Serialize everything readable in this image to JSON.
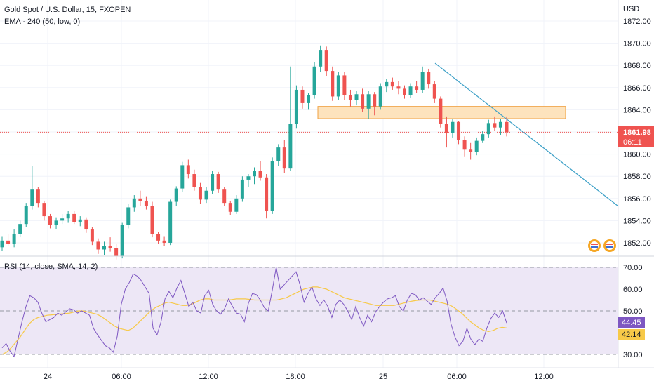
{
  "header": {
    "symbol_title": "Gold Spot / U.S. Dollar, 15, FXOPEN",
    "ema_label": "EMA · 240 (50, low, 0)",
    "rsi_label": "RSI (14, close, SMA, 14, 2)"
  },
  "price_axis": {
    "currency": "USD",
    "ticks": [
      "1872.00",
      "1870.00",
      "1868.00",
      "1866.00",
      "1864.00",
      "1862.00",
      "1860.00",
      "1858.00",
      "1856.00",
      "1854.00",
      "1852.00"
    ],
    "last_price": "1861.98",
    "countdown": "06:11"
  },
  "rsi_axis": {
    "ticks": [
      "70.00",
      "60.00",
      "50.00",
      "40.00",
      "30.00"
    ],
    "rsi_value": "44.45",
    "sma_value": "42.14"
  },
  "time_axis": {
    "ticks": [
      "24",
      "06:00",
      "12:00",
      "18:00",
      "25",
      "06:00",
      "12:00"
    ]
  },
  "colors": {
    "up": "#26a69a",
    "down": "#ef5350",
    "rsi_line": "#7e57c2",
    "rsi_sma": "#f7c948",
    "rsi_band": "#ede7f6",
    "trendline": "#3da0c7",
    "zone_fill": "#fde3bd",
    "zone_border": "#f0a040",
    "price_line": "#ef5350"
  },
  "chart_data": [
    {
      "type": "candlestick",
      "title": "Gold Spot / U.S. Dollar, 15, FXOPEN",
      "ylabel": "USD",
      "ylim": [
        1851,
        1873
      ],
      "x_labels": [
        "24",
        "06:00",
        "12:00",
        "18:00",
        "25",
        "06:00",
        "12:00"
      ],
      "ohlc": [
        [
          1851.6,
          1852.6,
          1851.3,
          1852.2
        ],
        [
          1852.2,
          1852.8,
          1851.7,
          1851.9
        ],
        [
          1851.9,
          1853.2,
          1851.6,
          1852.8
        ],
        [
          1852.8,
          1854.0,
          1852.5,
          1853.7
        ],
        [
          1853.7,
          1855.6,
          1853.4,
          1855.3
        ],
        [
          1855.3,
          1858.9,
          1855.0,
          1856.8
        ],
        [
          1856.8,
          1857.0,
          1855.2,
          1855.6
        ],
        [
          1855.6,
          1855.8,
          1854.0,
          1854.4
        ],
        [
          1854.4,
          1854.6,
          1853.3,
          1853.6
        ],
        [
          1853.6,
          1854.3,
          1853.2,
          1854.0
        ],
        [
          1854.0,
          1854.6,
          1853.7,
          1854.2
        ],
        [
          1854.2,
          1854.9,
          1853.8,
          1854.6
        ],
        [
          1854.6,
          1854.9,
          1853.7,
          1853.9
        ],
        [
          1853.9,
          1854.4,
          1853.5,
          1854.1
        ],
        [
          1854.1,
          1854.3,
          1852.9,
          1853.2
        ],
        [
          1853.2,
          1853.4,
          1851.8,
          1852.1
        ],
        [
          1852.1,
          1852.4,
          1851.0,
          1851.4
        ],
        [
          1851.4,
          1852.1,
          1850.9,
          1851.7
        ],
        [
          1851.7,
          1852.5,
          1851.2,
          1851.5
        ],
        [
          1851.5,
          1851.9,
          1850.5,
          1850.8
        ],
        [
          1850.8,
          1853.8,
          1850.6,
          1853.6
        ],
        [
          1853.6,
          1855.5,
          1853.3,
          1855.2
        ],
        [
          1855.2,
          1856.3,
          1854.8,
          1856.0
        ],
        [
          1856.0,
          1856.7,
          1855.3,
          1855.8
        ],
        [
          1855.8,
          1856.2,
          1855.0,
          1855.3
        ],
        [
          1855.3,
          1855.7,
          1852.5,
          1852.8
        ],
        [
          1852.8,
          1853.0,
          1851.9,
          1852.2
        ],
        [
          1852.2,
          1852.6,
          1851.7,
          1852.0
        ],
        [
          1852.0,
          1855.9,
          1851.8,
          1855.7
        ],
        [
          1855.7,
          1857.1,
          1855.3,
          1856.9
        ],
        [
          1856.9,
          1859.3,
          1856.6,
          1859.0
        ],
        [
          1859.0,
          1859.5,
          1857.8,
          1858.2
        ],
        [
          1858.2,
          1858.6,
          1856.7,
          1857.0
        ],
        [
          1857.0,
          1857.4,
          1855.5,
          1855.9
        ],
        [
          1855.9,
          1857.0,
          1855.6,
          1856.7
        ],
        [
          1856.7,
          1858.5,
          1856.4,
          1858.2
        ],
        [
          1858.2,
          1858.4,
          1856.5,
          1856.8
        ],
        [
          1856.8,
          1857.0,
          1855.3,
          1855.6
        ],
        [
          1855.6,
          1855.8,
          1854.5,
          1854.8
        ],
        [
          1854.8,
          1856.3,
          1854.6,
          1856.0
        ],
        [
          1856.0,
          1858.0,
          1855.7,
          1857.7
        ],
        [
          1857.7,
          1858.2,
          1857.0,
          1858.0
        ],
        [
          1858.0,
          1858.8,
          1857.3,
          1858.5
        ],
        [
          1858.5,
          1859.4,
          1857.6,
          1857.9
        ],
        [
          1857.9,
          1858.2,
          1854.2,
          1854.9
        ],
        [
          1854.9,
          1859.7,
          1854.6,
          1859.4
        ],
        [
          1859.4,
          1860.9,
          1858.9,
          1860.6
        ],
        [
          1860.6,
          1861.3,
          1858.3,
          1858.7
        ],
        [
          1858.7,
          1867.9,
          1858.5,
          1862.7
        ],
        [
          1862.7,
          1866.2,
          1862.3,
          1865.8
        ],
        [
          1865.8,
          1866.1,
          1864.1,
          1864.6
        ],
        [
          1864.6,
          1865.5,
          1864.0,
          1865.3
        ],
        [
          1865.3,
          1868.3,
          1865.0,
          1867.9
        ],
        [
          1867.9,
          1869.8,
          1867.4,
          1869.4
        ],
        [
          1869.4,
          1869.7,
          1867.0,
          1867.5
        ],
        [
          1867.5,
          1867.9,
          1864.8,
          1865.2
        ],
        [
          1865.2,
          1867.4,
          1864.9,
          1867.1
        ],
        [
          1867.1,
          1867.4,
          1864.9,
          1865.3
        ],
        [
          1865.3,
          1865.8,
          1864.3,
          1864.9
        ],
        [
          1864.9,
          1865.7,
          1864.4,
          1865.4
        ],
        [
          1865.4,
          1865.9,
          1863.8,
          1864.1
        ],
        [
          1864.1,
          1865.7,
          1863.2,
          1865.4
        ],
        [
          1865.4,
          1865.6,
          1863.5,
          1864.3
        ],
        [
          1864.3,
          1866.4,
          1864.0,
          1866.1
        ],
        [
          1866.1,
          1866.8,
          1865.6,
          1866.5
        ],
        [
          1866.5,
          1866.9,
          1865.8,
          1866.1
        ],
        [
          1866.1,
          1866.6,
          1865.4,
          1865.9
        ],
        [
          1865.9,
          1866.2,
          1865.0,
          1865.3
        ],
        [
          1865.3,
          1866.4,
          1865.1,
          1866.1
        ],
        [
          1866.1,
          1866.6,
          1865.5,
          1865.8
        ],
        [
          1865.8,
          1867.9,
          1865.5,
          1867.4
        ],
        [
          1867.4,
          1867.7,
          1865.9,
          1866.3
        ],
        [
          1866.3,
          1866.6,
          1864.6,
          1865.0
        ],
        [
          1865.0,
          1865.2,
          1862.4,
          1862.7
        ],
        [
          1862.7,
          1863.4,
          1860.6,
          1861.9
        ],
        [
          1861.9,
          1863.2,
          1861.5,
          1862.9
        ],
        [
          1862.9,
          1863.0,
          1860.9,
          1861.3
        ],
        [
          1861.3,
          1861.6,
          1859.8,
          1860.4
        ],
        [
          1860.4,
          1861.0,
          1859.5,
          1860.2
        ],
        [
          1860.2,
          1861.5,
          1859.9,
          1861.2
        ],
        [
          1861.2,
          1862.1,
          1861.0,
          1861.8
        ],
        [
          1861.8,
          1863.1,
          1861.5,
          1862.8
        ],
        [
          1862.8,
          1863.4,
          1862.1,
          1862.4
        ],
        [
          1862.4,
          1863.2,
          1861.7,
          1862.9
        ],
        [
          1862.9,
          1863.4,
          1861.6,
          1861.98
        ]
      ]
    },
    {
      "type": "line",
      "title": "RSI (14, close, SMA, 14, 2)",
      "ylim": [
        27,
        72
      ],
      "reference_lines": [
        70,
        50,
        30
      ],
      "series": [
        {
          "name": "RSI",
          "values": [
            33.0,
            35.0,
            31.5,
            29.0,
            37.0,
            45.0,
            52.0,
            57.0,
            56.0,
            54.0,
            49.0,
            45.0,
            46.0,
            47.0,
            49.0,
            48.0,
            49.5,
            51.0,
            50.5,
            49.0,
            50.0,
            49.0,
            48.0,
            42.0,
            39.0,
            36.5,
            34.0,
            33.0,
            31.0,
            38.5,
            53.0,
            60.0,
            63.0,
            67.0,
            66.0,
            64.0,
            61.0,
            58.0,
            42.0,
            39.0,
            45.0,
            55.5,
            59.0,
            56.0,
            60.5,
            64.0,
            58.0,
            52.0,
            54.0,
            50.0,
            49.0,
            57.0,
            59.5,
            53.0,
            50.0,
            48.5,
            51.0,
            55.5,
            52.0,
            49.0,
            48.5,
            45.0,
            53.5,
            58.0,
            57.5,
            55.0,
            51.5,
            50.0,
            59.5,
            70.0,
            60.0,
            62.0,
            64.0,
            66.0,
            68.0,
            62.0,
            54.0,
            58.0,
            61.0,
            55.5,
            52.5,
            55.0,
            52.0,
            47.0,
            53.0,
            55.0,
            53.0,
            50.0,
            46.0,
            52.0,
            47.0,
            43.0,
            48.0,
            45.0,
            49.5,
            52.0,
            54.0,
            55.5,
            56.0,
            57.0,
            52.0,
            50.0,
            55.0,
            58.0,
            57.5,
            55.0,
            56.0,
            54.5,
            53.0,
            56.0,
            58.0,
            60.5,
            54.5,
            44.0,
            38.0,
            34.0,
            36.0,
            42.0,
            37.0,
            34.5,
            37.0,
            36.0,
            42.0,
            46.5,
            49.0,
            47.0,
            50.0,
            44.45
          ]
        },
        {
          "name": "SMA",
          "values": [
            30.0,
            31.0,
            33.0,
            35.5,
            38.0,
            41.0,
            44.0,
            46.0,
            47.0,
            47.5,
            48.0,
            48.2,
            48.4,
            48.6,
            48.8,
            49.0,
            49.5,
            50.0,
            50.0,
            49.5,
            49.0,
            48.5,
            47.5,
            46.0,
            44.5,
            43.0,
            42.0,
            41.5,
            41.0,
            42.0,
            44.0,
            46.0,
            48.0,
            50.0,
            51.5,
            52.5,
            53.5,
            54.0,
            53.5,
            53.0,
            52.5,
            52.5,
            53.0,
            54.0,
            55.0,
            55.5,
            55.5,
            55.0,
            55.0,
            55.0,
            55.0,
            55.2,
            55.5,
            55.5,
            55.5,
            55.3,
            55.0,
            55.0,
            55.0,
            55.0,
            55.0,
            55.0,
            55.5,
            56.0,
            57.0,
            58.0,
            59.0,
            60.0,
            60.5,
            61.0,
            61.0,
            60.5,
            60.0,
            59.0,
            58.0,
            57.0,
            56.0,
            55.5,
            55.0,
            54.5,
            54.0,
            53.5,
            53.0,
            52.5,
            52.5,
            52.5,
            52.5,
            52.5,
            53.0,
            53.5,
            54.0,
            54.5,
            54.8,
            55.0,
            55.0,
            55.0,
            54.5,
            54.0,
            53.5,
            53.0,
            52.0,
            50.5,
            49.0,
            47.0,
            45.0,
            43.5,
            42.0,
            41.0,
            40.5,
            41.0,
            42.0,
            42.5,
            42.14
          ]
        }
      ]
    }
  ]
}
